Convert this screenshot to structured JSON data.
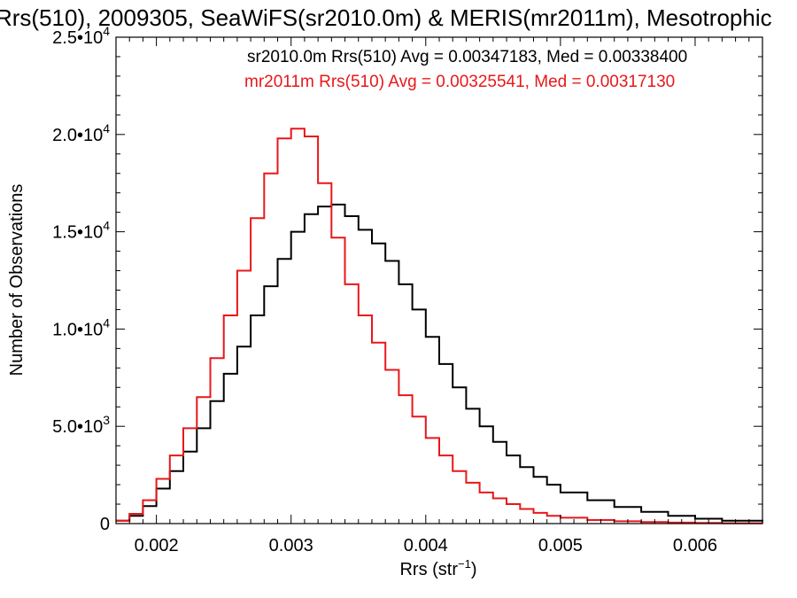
{
  "chart_data": {
    "type": "line",
    "title": "Rrs(510), 2009305, SeaWiFS(sr2010.0m) & MERIS(mr2011m), Mesotrophic",
    "xlabel_main": "Rrs (str",
    "xlabel_sup": "−1",
    "xlabel_close": ")",
    "ylabel": "Number of Observations",
    "xlim": [
      0.0017,
      0.0065
    ],
    "ylim": [
      0,
      25000
    ],
    "x_ticks": [
      {
        "value": 0.002,
        "label": "0.002"
      },
      {
        "value": 0.003,
        "label": "0.003"
      },
      {
        "value": 0.004,
        "label": "0.004"
      },
      {
        "value": 0.005,
        "label": "0.005"
      },
      {
        "value": 0.006,
        "label": "0.006"
      }
    ],
    "y_ticks": [
      {
        "value": 0,
        "mantissa": "0",
        "exp": ""
      },
      {
        "value": 5000,
        "mantissa": "5.0•10",
        "exp": "3"
      },
      {
        "value": 10000,
        "mantissa": "1.0•10",
        "exp": "4"
      },
      {
        "value": 15000,
        "mantissa": "1.5•10",
        "exp": "4"
      },
      {
        "value": 20000,
        "mantissa": "2.0•10",
        "exp": "4"
      },
      {
        "value": 25000,
        "mantissa": "2.5•10",
        "exp": "4"
      }
    ],
    "grid": false,
    "series": [
      {
        "name": "sr2010.0m",
        "legend": "sr2010.0m Rrs(510) Avg = 0.00347183, Med = 0.00338400",
        "color": "#000000",
        "x": [
          0.0017,
          0.0018,
          0.0019,
          0.002,
          0.0021,
          0.0022,
          0.0023,
          0.0024,
          0.0025,
          0.0026,
          0.0027,
          0.0028,
          0.0029,
          0.003,
          0.0031,
          0.0032,
          0.0033,
          0.0034,
          0.0035,
          0.0036,
          0.0037,
          0.0038,
          0.0039,
          0.004,
          0.0041,
          0.0042,
          0.0043,
          0.0044,
          0.0045,
          0.0046,
          0.0047,
          0.0048,
          0.0049,
          0.005,
          0.0052,
          0.0054,
          0.0056,
          0.0058,
          0.006,
          0.0062,
          0.0065
        ],
        "y": [
          150,
          400,
          900,
          1800,
          2700,
          3700,
          4900,
          6300,
          7700,
          9100,
          10700,
          12200,
          13600,
          15000,
          15900,
          16300,
          16400,
          15800,
          15100,
          14400,
          13500,
          12300,
          11000,
          9600,
          8200,
          7000,
          5900,
          5000,
          4200,
          3500,
          2900,
          2400,
          2000,
          1600,
          1200,
          850,
          600,
          400,
          250,
          150,
          100
        ]
      },
      {
        "name": "mr2011m",
        "legend": "mr2011m Rrs(510) Avg = 0.00325541, Med = 0.00317130",
        "color": "#e8171a",
        "x": [
          0.0017,
          0.0018,
          0.0019,
          0.002,
          0.0021,
          0.0022,
          0.0023,
          0.0024,
          0.0025,
          0.0026,
          0.0027,
          0.0028,
          0.0029,
          0.003,
          0.0031,
          0.0032,
          0.0033,
          0.0034,
          0.0035,
          0.0036,
          0.0037,
          0.0038,
          0.0039,
          0.004,
          0.0041,
          0.0042,
          0.0043,
          0.0044,
          0.0045,
          0.0046,
          0.0047,
          0.0048,
          0.0049,
          0.005,
          0.0052,
          0.0054,
          0.0056,
          0.0058,
          0.006,
          0.0062,
          0.0065
        ],
        "y": [
          150,
          500,
          1200,
          2300,
          3500,
          4900,
          6500,
          8500,
          10700,
          13000,
          15700,
          18000,
          19800,
          20300,
          19900,
          17500,
          14700,
          12300,
          10700,
          9300,
          7900,
          6600,
          5500,
          4400,
          3500,
          2700,
          2100,
          1600,
          1300,
          1000,
          750,
          550,
          400,
          300,
          180,
          120,
          80,
          50,
          30,
          20,
          10
        ]
      }
    ]
  }
}
